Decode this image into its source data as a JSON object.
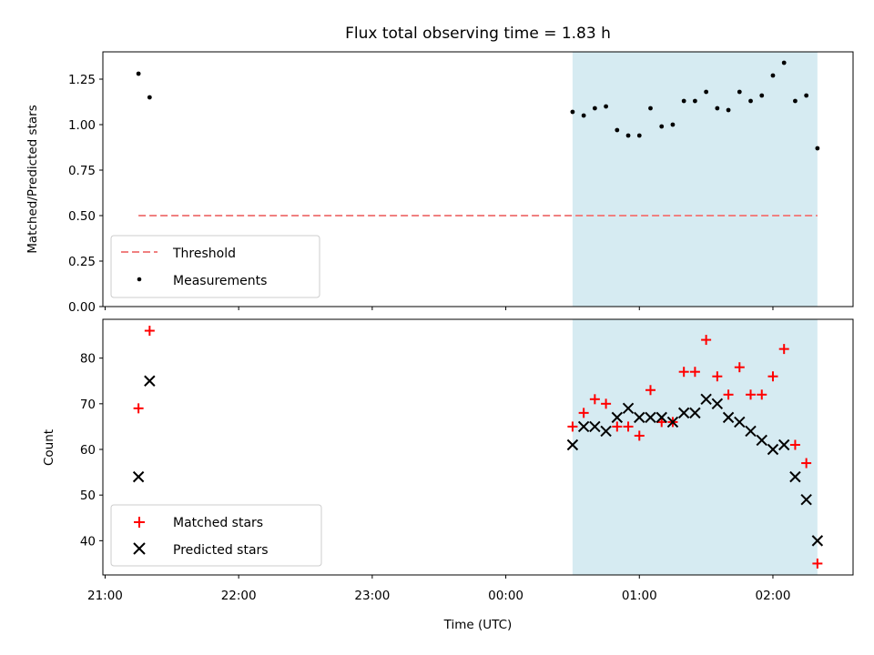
{
  "title": "Flux total observing time = 1.83 h",
  "chart_data": [
    {
      "type": "scatter",
      "panel": "top",
      "ylabel": "Matched/Predicted stars",
      "ylim": [
        0,
        1.4
      ],
      "yticks": [
        0.0,
        0.25,
        0.5,
        0.75,
        1.0,
        1.25
      ],
      "ytick_labels": [
        "0.00",
        "0.25",
        "0.50",
        "0.75",
        "1.00",
        "1.25"
      ],
      "threshold": {
        "name": "Threshold",
        "value": 0.5,
        "x_start": "21:15",
        "x_end": "02:20",
        "color": "#f08080",
        "style": "dashed"
      },
      "series": [
        {
          "name": "Measurements",
          "marker": "dot",
          "color": "#000000",
          "points": [
            [
              "21:15",
              1.28
            ],
            [
              "21:20",
              1.15
            ],
            [
              "00:30",
              1.07
            ],
            [
              "00:35",
              1.05
            ],
            [
              "00:40",
              1.09
            ],
            [
              "00:45",
              1.1
            ],
            [
              "00:50",
              0.97
            ],
            [
              "00:55",
              0.94
            ],
            [
              "01:00",
              0.94
            ],
            [
              "01:05",
              1.09
            ],
            [
              "01:10",
              0.99
            ],
            [
              "01:15",
              1.0
            ],
            [
              "01:20",
              1.13
            ],
            [
              "01:25",
              1.13
            ],
            [
              "01:30",
              1.18
            ],
            [
              "01:35",
              1.09
            ],
            [
              "01:40",
              1.08
            ],
            [
              "01:45",
              1.18
            ],
            [
              "01:50",
              1.13
            ],
            [
              "01:55",
              1.16
            ],
            [
              "02:00",
              1.27
            ],
            [
              "02:05",
              1.34
            ],
            [
              "02:10",
              1.13
            ],
            [
              "02:15",
              1.16
            ],
            [
              "02:20",
              0.87
            ]
          ]
        }
      ],
      "legend": "lower-left"
    },
    {
      "type": "scatter",
      "panel": "bottom",
      "xlabel": "Time (UTC)",
      "ylabel": "Count",
      "ylim": [
        32.5,
        88.5
      ],
      "yticks": [
        40,
        50,
        60,
        70,
        80
      ],
      "ytick_labels": [
        "40",
        "50",
        "60",
        "70",
        "80"
      ],
      "series": [
        {
          "name": "Matched stars",
          "marker": "plus",
          "color": "#ff0000",
          "points": [
            [
              "21:15",
              69
            ],
            [
              "21:20",
              86
            ],
            [
              "00:30",
              65
            ],
            [
              "00:35",
              68
            ],
            [
              "00:40",
              71
            ],
            [
              "00:45",
              70
            ],
            [
              "00:50",
              65
            ],
            [
              "00:55",
              65
            ],
            [
              "01:00",
              63
            ],
            [
              "01:05",
              73
            ],
            [
              "01:10",
              66
            ],
            [
              "01:15",
              66
            ],
            [
              "01:20",
              77
            ],
            [
              "01:25",
              77
            ],
            [
              "01:30",
              84
            ],
            [
              "01:35",
              76
            ],
            [
              "01:40",
              72
            ],
            [
              "01:45",
              78
            ],
            [
              "01:50",
              72
            ],
            [
              "01:55",
              72
            ],
            [
              "02:00",
              76
            ],
            [
              "02:05",
              82
            ],
            [
              "02:10",
              61
            ],
            [
              "02:15",
              57
            ],
            [
              "02:20",
              35
            ]
          ]
        },
        {
          "name": "Predicted stars",
          "marker": "x",
          "color": "#000000",
          "points": [
            [
              "21:15",
              54
            ],
            [
              "21:20",
              75
            ],
            [
              "00:30",
              61
            ],
            [
              "00:35",
              65
            ],
            [
              "00:40",
              65
            ],
            [
              "00:45",
              64
            ],
            [
              "00:50",
              67
            ],
            [
              "00:55",
              69
            ],
            [
              "01:00",
              67
            ],
            [
              "01:05",
              67
            ],
            [
              "01:10",
              67
            ],
            [
              "01:15",
              66
            ],
            [
              "01:20",
              68
            ],
            [
              "01:25",
              68
            ],
            [
              "01:30",
              71
            ],
            [
              "01:35",
              70
            ],
            [
              "01:40",
              67
            ],
            [
              "01:45",
              66
            ],
            [
              "01:50",
              64
            ],
            [
              "01:55",
              62
            ],
            [
              "02:00",
              60
            ],
            [
              "02:05",
              61
            ],
            [
              "02:10",
              54
            ],
            [
              "02:15",
              49
            ],
            [
              "02:20",
              40
            ]
          ]
        }
      ],
      "legend": "lower-left"
    }
  ],
  "shared_x": {
    "xlim": [
      "20:59",
      "02:36"
    ],
    "xticks": [
      "21:00",
      "22:00",
      "23:00",
      "00:00",
      "01:00",
      "02:00"
    ],
    "xtick_labels": [
      "21:00",
      "22:00",
      "23:00",
      "00:00",
      "01:00",
      "02:00"
    ]
  },
  "observing_window": {
    "start": "00:30",
    "end": "02:20",
    "color": "#add8e6",
    "opacity": 0.5
  }
}
